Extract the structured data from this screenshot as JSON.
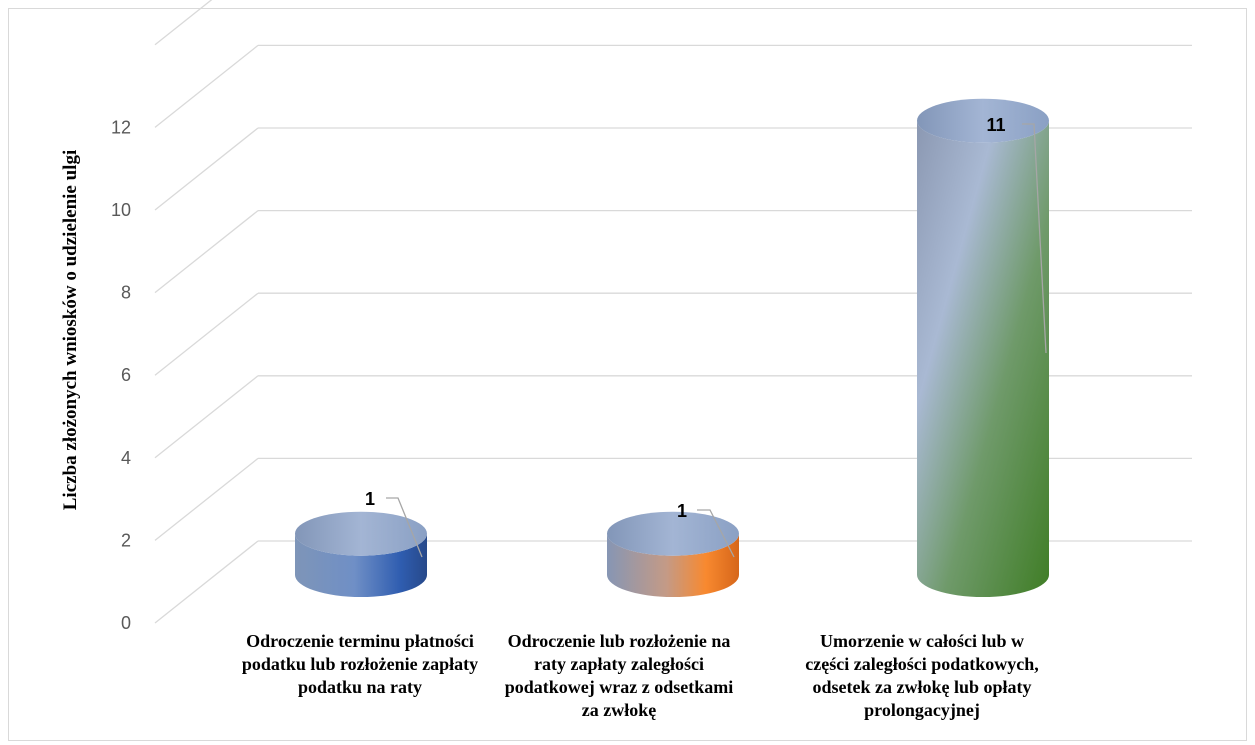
{
  "chart_data": {
    "type": "bar",
    "style": "3d-cylinder",
    "categories": [
      "Odroczenie terminu płatności podatku lub rozłożenie zapłaty podatku na raty",
      "Odroczenie lub rozłożenie na raty zapłaty zaległości podatkowej wraz z odsetkami za zwłokę",
      "Umorzenie w całości lub w części zaległości podatkowych, odsetek za zwłokę lub opłaty prolongacyjnej"
    ],
    "values": [
      1,
      1,
      11
    ],
    "data_labels": [
      "1",
      "1",
      "11"
    ],
    "title": "",
    "xlabel": "",
    "ylabel": "Liczba złożonych wniosków o udzielenie ulgi",
    "ylim": [
      0,
      12
    ],
    "yticks": [
      "0",
      "2",
      "4",
      "6",
      "8",
      "10",
      "12"
    ],
    "grid": true,
    "legend": "none",
    "colors": [
      "#4a72b8",
      "#f4822e",
      "#5a9a3c"
    ]
  }
}
